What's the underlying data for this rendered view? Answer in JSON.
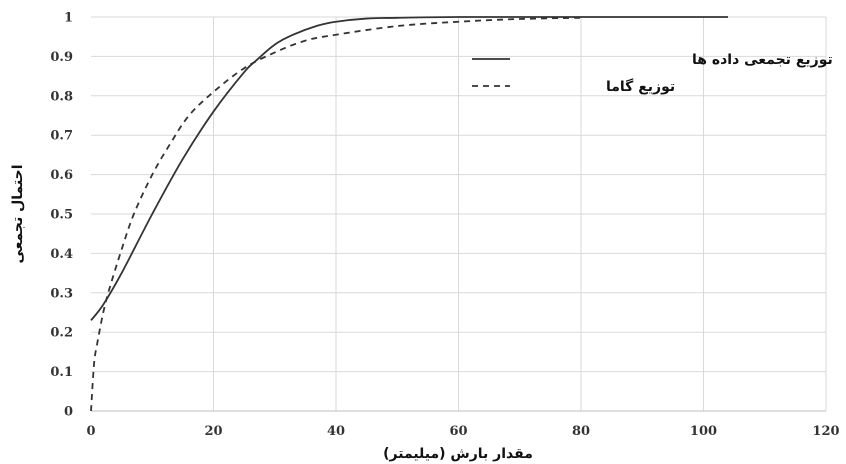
{
  "chart_data": {
    "type": "line",
    "xlabel": "مقدار بارش (میلیمتر)",
    "ylabel": "احتمال تجمعی",
    "xlim": [
      0,
      120
    ],
    "ylim": [
      0,
      1
    ],
    "x_ticks": [
      "0",
      "20",
      "40",
      "60",
      "80",
      "100",
      "120"
    ],
    "y_ticks": [
      "0",
      "0.1",
      "0.2",
      "0.3",
      "0.4",
      "0.5",
      "0.6",
      "0.7",
      "0.8",
      "0.9",
      "1"
    ],
    "grid": true,
    "legend_position": "top-right",
    "series": [
      {
        "name": "توزیع تجمعی داده ها",
        "style": "solid",
        "color": "#333333",
        "x": [
          0,
          2,
          5,
          10,
          15,
          20,
          25,
          27,
          30,
          33,
          37,
          40,
          45,
          50,
          60,
          80,
          104
        ],
        "y": [
          0.23,
          0.27,
          0.35,
          0.5,
          0.64,
          0.76,
          0.86,
          0.89,
          0.93,
          0.955,
          0.978,
          0.988,
          0.996,
          0.998,
          1.0,
          1.0,
          1.0
        ]
      },
      {
        "name": "توزیع گاما",
        "style": "dashed",
        "color": "#333333",
        "x": [
          0,
          0.5,
          1,
          2,
          3,
          5,
          7,
          10,
          13,
          16,
          20,
          25,
          30,
          35,
          40,
          50,
          60,
          70,
          80
        ],
        "y": [
          0,
          0.12,
          0.17,
          0.25,
          0.31,
          0.41,
          0.5,
          0.6,
          0.68,
          0.75,
          0.81,
          0.87,
          0.91,
          0.94,
          0.955,
          0.977,
          0.988,
          0.995,
          0.998
        ]
      }
    ]
  }
}
